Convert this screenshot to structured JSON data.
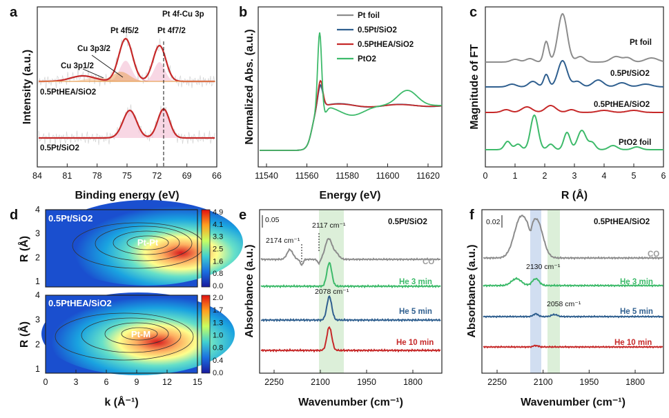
{
  "panels": {
    "a": {
      "letter": "a",
      "title": "Pt 4f-Cu 3p",
      "xlabel": "Binding energy (eV)",
      "ylabel": "Intensity (a.u.)",
      "xticks": [
        "84",
        "81",
        "78",
        "75",
        "72",
        "69",
        "66"
      ],
      "labels": {
        "pt52": "Pt 4f5/2",
        "pt72": "Pt 4f7/2",
        "cu32": "Cu 3p3/2",
        "cu12": "Cu 3p1/2",
        "hea": "0.5PtHEA/SiO2",
        "pt": "0.5Pt/SiO2"
      }
    },
    "b": {
      "letter": "b",
      "xlabel": "Energy (eV)",
      "ylabel": "Normalized Abs. (a.u.)",
      "xticks": [
        "11540",
        "11560",
        "11580",
        "11600",
        "11620"
      ],
      "legend": [
        "Pt foil",
        "0.5Pt/SiO2",
        "0.5PtHEA/SiO2",
        "PtO2"
      ]
    },
    "c": {
      "letter": "c",
      "xlabel": "R (Å)",
      "ylabel": "Magnitude of FT",
      "xticks": [
        "0",
        "1",
        "2",
        "3",
        "4",
        "5",
        "6"
      ],
      "labels": [
        "Pt foil",
        "0.5Pt/SiO2",
        "0.5PtHEA/SiO2",
        "PtO2 foil"
      ]
    },
    "d": {
      "letter": "d",
      "xlabel": "k (Å⁻¹)",
      "ylabel": "R (Å)",
      "xticks": [
        "0",
        "3",
        "6",
        "9",
        "12",
        "15"
      ],
      "top": {
        "label": "0.5Pt/SiO2",
        "spot": "Pt-Pt",
        "yticks": [
          "1",
          "2",
          "3",
          "4"
        ],
        "cbar": [
          "4.9",
          "4.1",
          "3.3",
          "2.5",
          "1.6",
          "0.8",
          "0.0"
        ]
      },
      "bottom": {
        "label": "0.5PtHEA/SiO2",
        "spot": "Pt-M",
        "yticks": [
          "1",
          "2",
          "3",
          "4"
        ],
        "cbar": [
          "2.0",
          "1.7",
          "1.3",
          "1.0",
          "0.8",
          "0.4",
          "0.0"
        ]
      }
    },
    "e": {
      "letter": "e",
      "title": "0.5Pt/SiO2",
      "xlabel": "Wavenumber (cm⁻¹)",
      "ylabel": "Absorbance (a.u.)",
      "xticks": [
        "2250",
        "2100",
        "1950",
        "1800"
      ],
      "scale": "0.05",
      "annotations": [
        "2174 cm⁻¹",
        "2117 cm⁻¹",
        "2078 cm⁻¹"
      ],
      "traces": [
        "CO",
        "He  3 min",
        "He  5 min",
        "He  10 min"
      ]
    },
    "f": {
      "letter": "f",
      "title": "0.5PtHEA/SiO2",
      "xlabel": "Wavenumber (cm⁻¹)",
      "ylabel": "Absorbance (a.u.)",
      "xticks": [
        "2250",
        "2100",
        "1950",
        "1800"
      ],
      "scale": "0.02",
      "annotations": [
        "2130 cm⁻¹",
        "2058 cm⁻¹"
      ],
      "traces": [
        "CO",
        "He  3 min",
        "He  5 min",
        "He  10 min"
      ]
    }
  },
  "colors": {
    "grey": "#8c8c8c",
    "blue": "#2f5f8f",
    "red": "#c62828",
    "green": "#3dba6a",
    "orange": "#e8a25a",
    "pink": "#d98fb0"
  },
  "chart_data": [
    {
      "type": "line",
      "title": "Pt 4f-Cu 3p",
      "xlabel": "Binding energy (eV)",
      "ylabel": "Intensity (a.u.)",
      "xlim": [
        84,
        66
      ],
      "series": [
        {
          "name": "0.5PtHEA/SiO2",
          "peaks_eV": [
            75.0,
            71.6
          ]
        },
        {
          "name": "0.5Pt/SiO2",
          "peaks_eV": [
            74.9,
            71.3
          ]
        }
      ]
    },
    {
      "type": "line",
      "xlabel": "Energy (eV)",
      "ylabel": "Normalized Abs. (a.u.)",
      "xlim": [
        11533,
        11630
      ],
      "series": [
        {
          "name": "Pt foil",
          "white_line_eV": 11566
        },
        {
          "name": "0.5Pt/SiO2",
          "white_line_eV": 11566
        },
        {
          "name": "0.5PtHEA/SiO2",
          "white_line_eV": 11566
        },
        {
          "name": "PtO2",
          "white_line_eV": 11565
        }
      ]
    },
    {
      "type": "line",
      "xlabel": "R (Å)",
      "ylabel": "Magnitude of FT",
      "xlim": [
        0,
        6
      ],
      "series": [
        {
          "name": "Pt foil",
          "main_peak_R": 2.6
        },
        {
          "name": "0.5Pt/SiO2",
          "main_peak_R": 2.6
        },
        {
          "name": "0.5PtHEA/SiO2",
          "main_peak_R": 2.2
        },
        {
          "name": "PtO2 foil",
          "main_peak_R": 1.65
        }
      ]
    },
    {
      "type": "heatmap",
      "xlabel": "k (Å⁻¹)",
      "ylabel": "R (Å)",
      "xlim": [
        0,
        15
      ],
      "ylim": [
        0.5,
        4
      ],
      "series": [
        {
          "name": "0.5Pt/SiO2",
          "max_at": [
            10,
            2.6
          ],
          "cbar_range": [
            0,
            4.9
          ]
        },
        {
          "name": "0.5PtHEA/SiO2",
          "max_at": [
            9,
            2.3
          ],
          "cbar_range": [
            0,
            2.0
          ]
        }
      ]
    },
    {
      "type": "line",
      "title": "0.5Pt/SiO2",
      "xlabel": "Wavenumber (cm⁻¹)",
      "ylabel": "Absorbance (a.u.)",
      "xlim": [
        2320,
        1690
      ],
      "series": [
        {
          "name": "CO",
          "peaks": [
            2174,
            2117,
            2078
          ]
        },
        {
          "name": "He  3 min",
          "peaks": [
            2078
          ]
        },
        {
          "name": "He  5 min",
          "peaks": [
            2078
          ]
        },
        {
          "name": "He  10 min",
          "peaks": [
            2078
          ]
        }
      ]
    },
    {
      "type": "line",
      "title": "0.5PtHEA/SiO2",
      "xlabel": "Wavenumber (cm⁻¹)",
      "ylabel": "Absorbance (a.u.)",
      "xlim": [
        2320,
        1690
      ],
      "series": [
        {
          "name": "CO",
          "peaks": [
            2174,
            2117
          ]
        },
        {
          "name": "He  3 min",
          "peaks": [
            2130
          ]
        },
        {
          "name": "He  5 min",
          "peaks": [
            2130,
            2058
          ]
        },
        {
          "name": "He  10 min",
          "peaks": [
            2130
          ]
        }
      ]
    }
  ]
}
